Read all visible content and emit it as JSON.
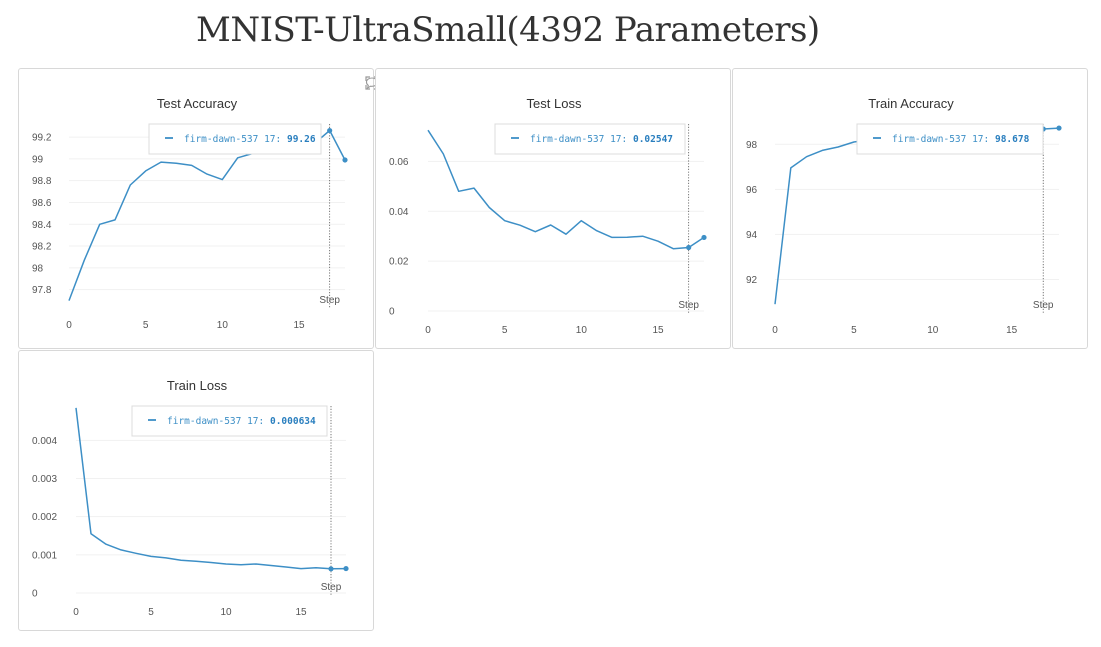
{
  "page": {
    "title": "MNIST-UltraSmall(4392 Parameters)"
  },
  "colors": {
    "series": "#3d8fc6",
    "grid": "#f1f1f1",
    "border": "#d8d8d8"
  },
  "panel_icons": [
    "fullscreen-icon",
    "comment-icon"
  ],
  "chart_data": [
    {
      "id": "test-accuracy",
      "type": "line",
      "title": "Test Accuracy",
      "x": [
        0,
        1,
        2,
        3,
        4,
        5,
        6,
        7,
        8,
        9,
        10,
        11,
        12,
        13,
        14,
        15,
        16,
        17,
        18
      ],
      "series": [
        {
          "name": "firm-dawn-537",
          "values": [
            97.7,
            98.07,
            98.4,
            98.44,
            98.76,
            98.89,
            98.97,
            98.96,
            98.94,
            98.86,
            98.81,
            99.01,
            99.05,
            99.08,
            99.1,
            99.12,
            99.14,
            99.26,
            98.99
          ]
        }
      ],
      "xlim": [
        0,
        18
      ],
      "ylim": [
        97.65,
        99.32
      ],
      "xticks": [
        0,
        5,
        10,
        15
      ],
      "xtick_labels": [
        "0",
        "5",
        "10",
        "15"
      ],
      "yticks": [
        97.8,
        98,
        98.2,
        98.4,
        98.6,
        98.8,
        99,
        99.2
      ],
      "ytick_labels": [
        "97.8",
        "98",
        "98.2",
        "98.4",
        "98.6",
        "98.8",
        "99",
        "99.2"
      ],
      "grid": true,
      "xlabel": "Step",
      "hover": {
        "step": 17,
        "step_label": "17:",
        "value": "99.26"
      }
    },
    {
      "id": "test-loss",
      "type": "line",
      "title": "Test Loss",
      "x": [
        0,
        1,
        2,
        3,
        4,
        5,
        6,
        7,
        8,
        9,
        10,
        11,
        12,
        13,
        14,
        15,
        16,
        17,
        18
      ],
      "series": [
        {
          "name": "firm-dawn-537",
          "values": [
            0.0725,
            0.063,
            0.048,
            0.0493,
            0.0415,
            0.0362,
            0.0344,
            0.0318,
            0.0345,
            0.0308,
            0.0362,
            0.0322,
            0.0295,
            0.0296,
            0.03,
            0.028,
            0.025,
            0.02547,
            0.0295
          ]
        }
      ],
      "xlim": [
        0,
        18
      ],
      "ylim": [
        0,
        0.075
      ],
      "xticks": [
        0,
        5,
        10,
        15
      ],
      "xtick_labels": [
        "0",
        "5",
        "10",
        "15"
      ],
      "yticks": [
        0,
        0.02,
        0.04,
        0.06
      ],
      "ytick_labels": [
        "0",
        "0.02",
        "0.04",
        "0.06"
      ],
      "grid": true,
      "xlabel": "Step",
      "hover": {
        "step": 17,
        "step_label": "17:",
        "value": "0.02547"
      }
    },
    {
      "id": "train-accuracy",
      "type": "line",
      "title": "Train Accuracy",
      "x": [
        0,
        1,
        2,
        3,
        4,
        5,
        6,
        7,
        8,
        9,
        10,
        11,
        12,
        13,
        14,
        15,
        16,
        17,
        18
      ],
      "series": [
        {
          "name": "firm-dawn-537",
          "values": [
            90.9,
            96.95,
            97.45,
            97.73,
            97.88,
            98.1,
            98.2,
            98.28,
            98.36,
            98.42,
            98.48,
            98.52,
            98.56,
            98.6,
            98.62,
            98.65,
            98.66,
            98.678,
            98.72
          ]
        }
      ],
      "xlim": [
        0,
        18
      ],
      "ylim": [
        90.6,
        98.9
      ],
      "xticks": [
        0,
        5,
        10,
        15
      ],
      "xtick_labels": [
        "0",
        "5",
        "10",
        "15"
      ],
      "yticks": [
        92,
        94,
        96,
        98
      ],
      "ytick_labels": [
        "92",
        "94",
        "96",
        "98"
      ],
      "grid": true,
      "xlabel": "Step",
      "hover": {
        "step": 17,
        "step_label": "17:",
        "value": "98.678"
      }
    },
    {
      "id": "train-loss",
      "type": "line",
      "title": "Train Loss",
      "x": [
        0,
        1,
        2,
        3,
        4,
        5,
        6,
        7,
        8,
        9,
        10,
        11,
        12,
        13,
        14,
        15,
        16,
        17,
        18
      ],
      "series": [
        {
          "name": "firm-dawn-537",
          "values": [
            0.00485,
            0.00155,
            0.00128,
            0.00113,
            0.00104,
            0.00096,
            0.00092,
            0.00086,
            0.00083,
            0.0008,
            0.00076,
            0.00074,
            0.00076,
            0.00072,
            0.00068,
            0.00064,
            0.00066,
            0.000634,
            0.00064
          ]
        }
      ],
      "xlim": [
        0,
        18
      ],
      "ylim": [
        0,
        0.0049
      ],
      "xticks": [
        0,
        5,
        10,
        15
      ],
      "xtick_labels": [
        "0",
        "5",
        "10",
        "15"
      ],
      "yticks": [
        0,
        0.001,
        0.002,
        0.003,
        0.004
      ],
      "ytick_labels": [
        "0",
        "0.001",
        "0.002",
        "0.003",
        "0.004"
      ],
      "grid": true,
      "xlabel": "Step",
      "hover": {
        "step": 17,
        "step_label": "17:",
        "value": "0.000634"
      }
    }
  ]
}
